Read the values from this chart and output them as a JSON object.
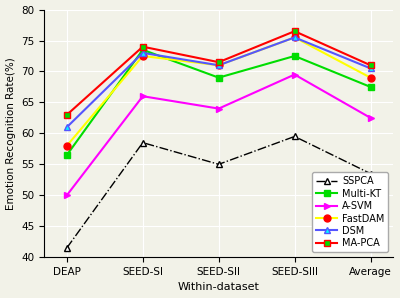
{
  "x_labels": [
    "DEAP",
    "SEED-SI",
    "SEED-SII",
    "SEED-SIII",
    "Average"
  ],
  "x_label": "Within-dataset",
  "y_label": "Emotion Recognition Rate(%)",
  "ylim": [
    40,
    80
  ],
  "yticks": [
    40,
    45,
    50,
    55,
    60,
    65,
    70,
    75,
    80
  ],
  "series": {
    "SSPCA": {
      "values": [
        41.5,
        58.5,
        55.0,
        59.5,
        53.5
      ],
      "color": "black",
      "linestyle": "-.",
      "marker": "^",
      "markersize": 4.5,
      "markerfacecolor": "white",
      "markeredgecolor": "black",
      "linewidth": 1.0
    },
    "Multi-KT": {
      "values": [
        56.5,
        73.5,
        69.0,
        72.5,
        67.5
      ],
      "color": "#00DD00",
      "linestyle": "-",
      "marker": "s",
      "markersize": 4.5,
      "markerfacecolor": "#00DD00",
      "markeredgecolor": "#00DD00",
      "linewidth": 1.5
    },
    "A-SVM": {
      "values": [
        50.0,
        66.0,
        64.0,
        69.5,
        62.5
      ],
      "color": "magenta",
      "linestyle": "-",
      "marker": ">",
      "markersize": 4.5,
      "markerfacecolor": "magenta",
      "markeredgecolor": "magenta",
      "linewidth": 1.5
    },
    "FastDAM": {
      "values": [
        58.0,
        72.5,
        71.0,
        75.5,
        69.0
      ],
      "color": "yellow",
      "linestyle": "-",
      "marker": "o",
      "markersize": 5.0,
      "markerfacecolor": "red",
      "markeredgecolor": "red",
      "linewidth": 1.5
    },
    "DSM": {
      "values": [
        61.0,
        73.0,
        71.0,
        75.5,
        70.5
      ],
      "color": "#5555FF",
      "linestyle": "-",
      "marker": "^",
      "markersize": 4.5,
      "markerfacecolor": "cyan",
      "markeredgecolor": "#5555FF",
      "linewidth": 1.5
    },
    "MA-PCA": {
      "values": [
        63.0,
        74.0,
        71.5,
        76.5,
        71.0
      ],
      "color": "red",
      "linestyle": "-",
      "marker": "s",
      "markersize": 4.5,
      "markerfacecolor": "#00DD00",
      "markeredgecolor": "red",
      "linewidth": 1.5
    }
  },
  "legend_order": [
    "SSPCA",
    "Multi-KT",
    "A-SVM",
    "FastDAM",
    "DSM",
    "MA-PCA"
  ],
  "background_color": "#f2f2e8",
  "grid_color": "#ffffff",
  "tick_fontsize": 7.5,
  "label_fontsize": 8.0,
  "legend_fontsize": 7.0
}
